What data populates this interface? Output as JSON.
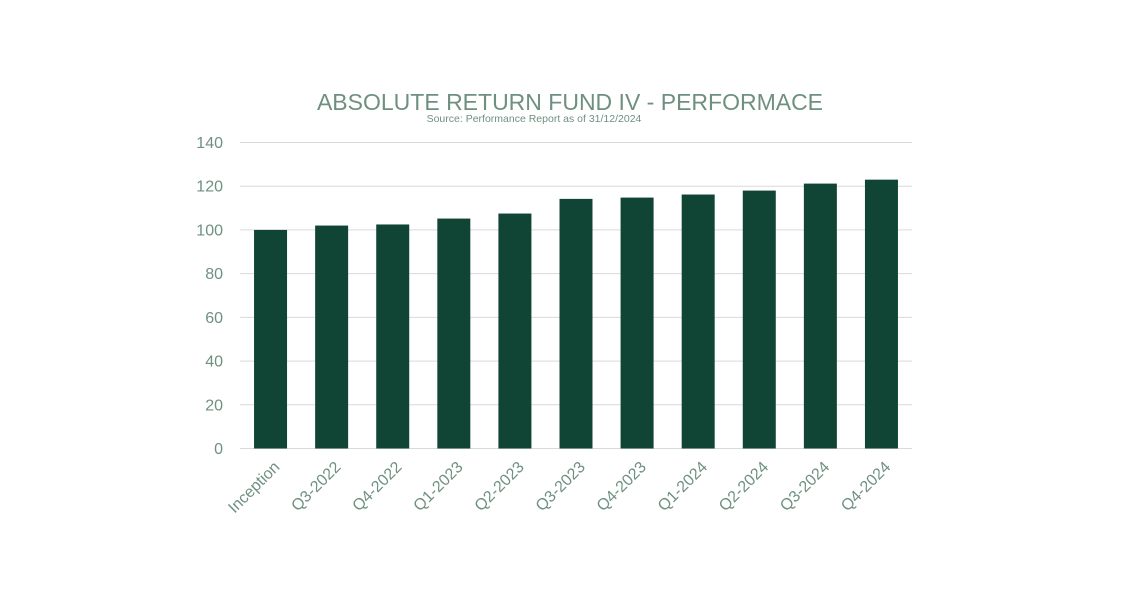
{
  "colors": {
    "bar": "#104535",
    "text": "#6f9080",
    "grid": "#d9d9d9",
    "background": "#ffffff"
  },
  "chart_data": {
    "type": "bar",
    "title": "ABSOLUTE RETURN FUND IV - PERFORMACE",
    "subtitle": "Source: Performance Report as of 31/12/2024",
    "xlabel": "",
    "ylabel": "",
    "categories": [
      "Inception",
      "Q3-2022",
      "Q4-2022",
      "Q1-2023",
      "Q2-2023",
      "Q3-2023",
      "Q4-2023",
      "Q1-2024",
      "Q2-2024",
      "Q3-2024",
      "Q4-2024"
    ],
    "values": [
      100,
      102,
      102.5,
      105.2,
      107.5,
      114.2,
      114.8,
      116.2,
      118,
      121.2,
      123
    ],
    "ylim": [
      0,
      140
    ],
    "yticks": [
      0,
      20,
      40,
      60,
      80,
      100,
      120,
      140
    ],
    "grid": true,
    "legend": "none"
  }
}
